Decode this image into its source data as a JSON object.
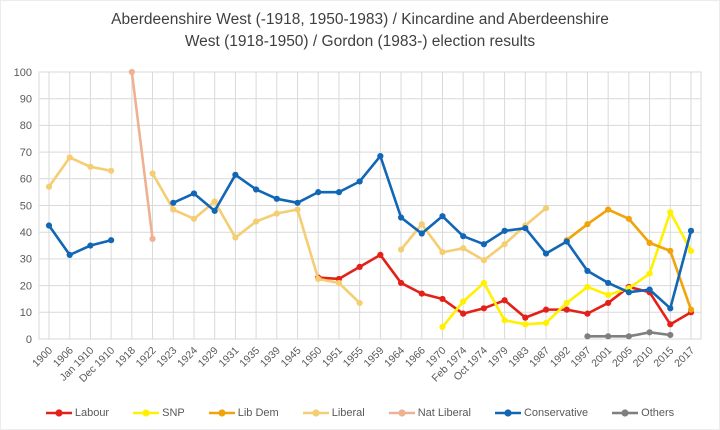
{
  "title": {
    "line1": "Aberdeenshire West (-1918, 1950-1983) / Kincardine and Aberdeenshire",
    "line2": "West (1918-1950) / Gordon (1983-) election results"
  },
  "chart_data": {
    "type": "line",
    "title": "Aberdeenshire West (-1918, 1950-1983) / Kincardine and Aberdeenshire West (1918-1950) / Gordon (1983-) election results",
    "xlabel": "",
    "ylabel": "",
    "ylim": [
      0,
      100
    ],
    "y_ticks": [
      0,
      10,
      20,
      30,
      40,
      50,
      60,
      70,
      80,
      90,
      100
    ],
    "grid": true,
    "legend_position": "bottom",
    "marker": "circle",
    "categories": [
      "1900",
      "1906",
      "Jan 1910",
      "Dec 1910",
      "1918",
      "1922",
      "1923",
      "1924",
      "1929",
      "1931",
      "1935",
      "1939",
      "1945",
      "1950",
      "1951",
      "1955",
      "1959",
      "1964",
      "1966",
      "1970",
      "Feb 1974",
      "Oct 1974",
      "1979",
      "1983",
      "1987",
      "1992",
      "1997",
      "2001",
      "2005",
      "2010",
      "2015",
      "2017"
    ],
    "series": [
      {
        "name": "Labour",
        "color": "#e32119",
        "values": [
          null,
          null,
          null,
          null,
          null,
          null,
          null,
          null,
          null,
          null,
          null,
          null,
          null,
          23,
          22.5,
          27,
          31.5,
          21,
          17,
          15,
          9.5,
          11.5,
          14.5,
          8,
          11,
          11,
          9.5,
          13.5,
          19.5,
          17.5,
          5.5,
          10
        ]
      },
      {
        "name": "SNP",
        "color": "#fff100",
        "values": [
          null,
          null,
          null,
          null,
          null,
          null,
          null,
          null,
          null,
          null,
          null,
          null,
          null,
          null,
          null,
          null,
          null,
          null,
          null,
          4.5,
          14,
          21,
          7,
          5.5,
          6,
          13.5,
          19.5,
          16.5,
          19,
          24.5,
          47.5,
          33
        ]
      },
      {
        "name": "Lib Dem",
        "color": "#f0a30a",
        "values": [
          null,
          null,
          null,
          null,
          null,
          null,
          null,
          null,
          null,
          null,
          null,
          null,
          null,
          null,
          null,
          null,
          null,
          null,
          null,
          null,
          null,
          null,
          null,
          null,
          null,
          37,
          43,
          48.5,
          45,
          36,
          33,
          11
        ]
      },
      {
        "name": "Liberal",
        "color": "#f5cd72",
        "values": [
          57,
          68,
          64.5,
          63,
          null,
          62,
          48.5,
          45,
          51.5,
          38,
          44,
          47,
          48.5,
          22.5,
          21,
          13.5,
          null,
          33.5,
          43,
          32.5,
          34,
          29.5,
          35.5,
          42.5,
          49,
          null,
          null,
          null,
          null,
          null,
          null,
          null
        ]
      },
      {
        "name": "Nat Liberal",
        "color": "#efb193",
        "values": [
          null,
          null,
          null,
          null,
          100,
          37.5,
          null,
          null,
          null,
          null,
          null,
          null,
          null,
          null,
          null,
          null,
          null,
          null,
          null,
          null,
          null,
          null,
          null,
          null,
          null,
          null,
          null,
          null,
          null,
          null,
          null,
          null
        ]
      },
      {
        "name": "Conservative",
        "color": "#1166b5",
        "values": [
          42.5,
          31.5,
          35,
          37,
          null,
          null,
          51,
          54.5,
          48,
          61.5,
          56,
          52.5,
          51,
          55,
          55,
          59,
          68.5,
          45.5,
          39.5,
          46,
          38.5,
          35.5,
          40.5,
          41.5,
          32,
          36.5,
          25.5,
          21,
          17.5,
          18.5,
          11.5,
          40.5
        ]
      },
      {
        "name": "Others",
        "color": "#7f7f7f",
        "values": [
          null,
          null,
          null,
          null,
          null,
          null,
          null,
          null,
          null,
          null,
          null,
          null,
          null,
          null,
          null,
          null,
          null,
          null,
          null,
          null,
          null,
          null,
          null,
          null,
          null,
          null,
          1,
          1,
          1,
          2.5,
          1.5,
          null
        ]
      }
    ]
  },
  "style": {
    "grid_color": "#d9d9d9",
    "axis_label_color": "#595959",
    "title_color": "#3f3f3f",
    "background": "#ffffff"
  }
}
